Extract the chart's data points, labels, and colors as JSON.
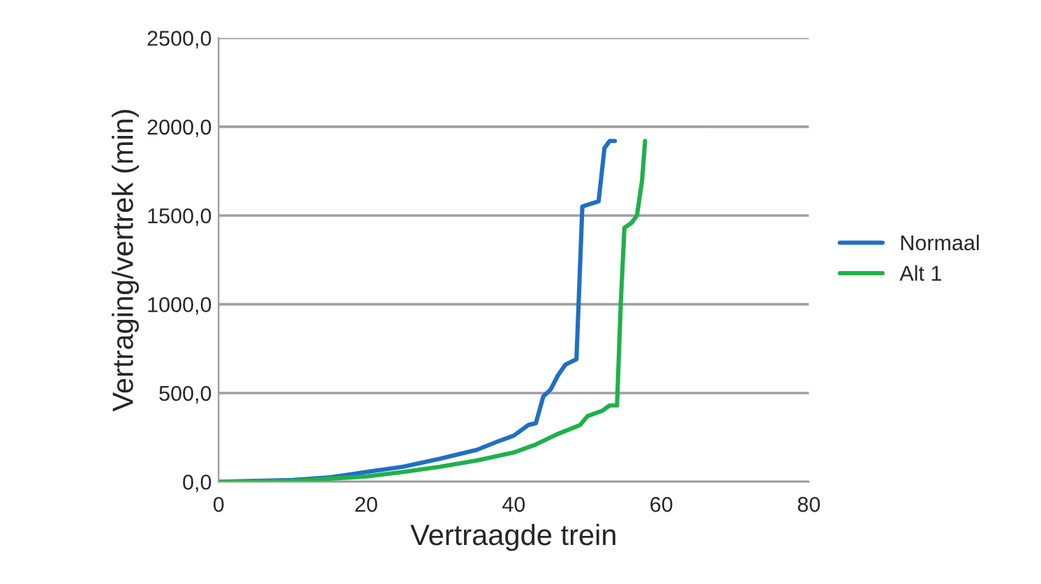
{
  "chart_data": {
    "type": "line",
    "xlabel": "Vertraagde trein",
    "ylabel": "Vertraging/vertrek (min)",
    "xlim": [
      0,
      80
    ],
    "xticks": [
      0,
      20,
      40,
      60,
      80
    ],
    "ylim": [
      0,
      2500
    ],
    "yticks": [
      {
        "value": 0,
        "label": "0,0"
      },
      {
        "value": 500,
        "label": "500,0"
      },
      {
        "value": 1000,
        "label": "1000,0"
      },
      {
        "value": 1500,
        "label": "1500,0"
      },
      {
        "value": 2000,
        "label": "2000,0"
      },
      {
        "value": 2500,
        "label": "2500,0"
      }
    ],
    "grid": "y",
    "legend": "right",
    "marker": "none",
    "line_style": "solid",
    "series": [
      {
        "name": "Normaal",
        "color": "#1f6fc5",
        "x": [
          0,
          10,
          15,
          20,
          25,
          30,
          35,
          38,
          40,
          42,
          43,
          44,
          45,
          46,
          47,
          48.5,
          49.3,
          50,
          51.5,
          52.3,
          53,
          53.7
        ],
        "values": [
          0,
          10,
          25,
          55,
          85,
          130,
          180,
          230,
          260,
          320,
          330,
          480,
          520,
          600,
          660,
          690,
          1550,
          1560,
          1580,
          1880,
          1920,
          1920
        ]
      },
      {
        "name": "Alt 1",
        "color": "#1fb14a",
        "x": [
          0,
          10,
          20,
          25,
          30,
          35,
          40,
          43,
          46,
          49,
          50,
          52,
          53,
          54,
          54.5,
          55,
          56,
          56.7,
          57.4,
          57.8
        ],
        "values": [
          0,
          5,
          30,
          55,
          85,
          120,
          165,
          210,
          270,
          320,
          370,
          400,
          430,
          430,
          1000,
          1430,
          1460,
          1500,
          1700,
          1920
        ]
      }
    ]
  }
}
